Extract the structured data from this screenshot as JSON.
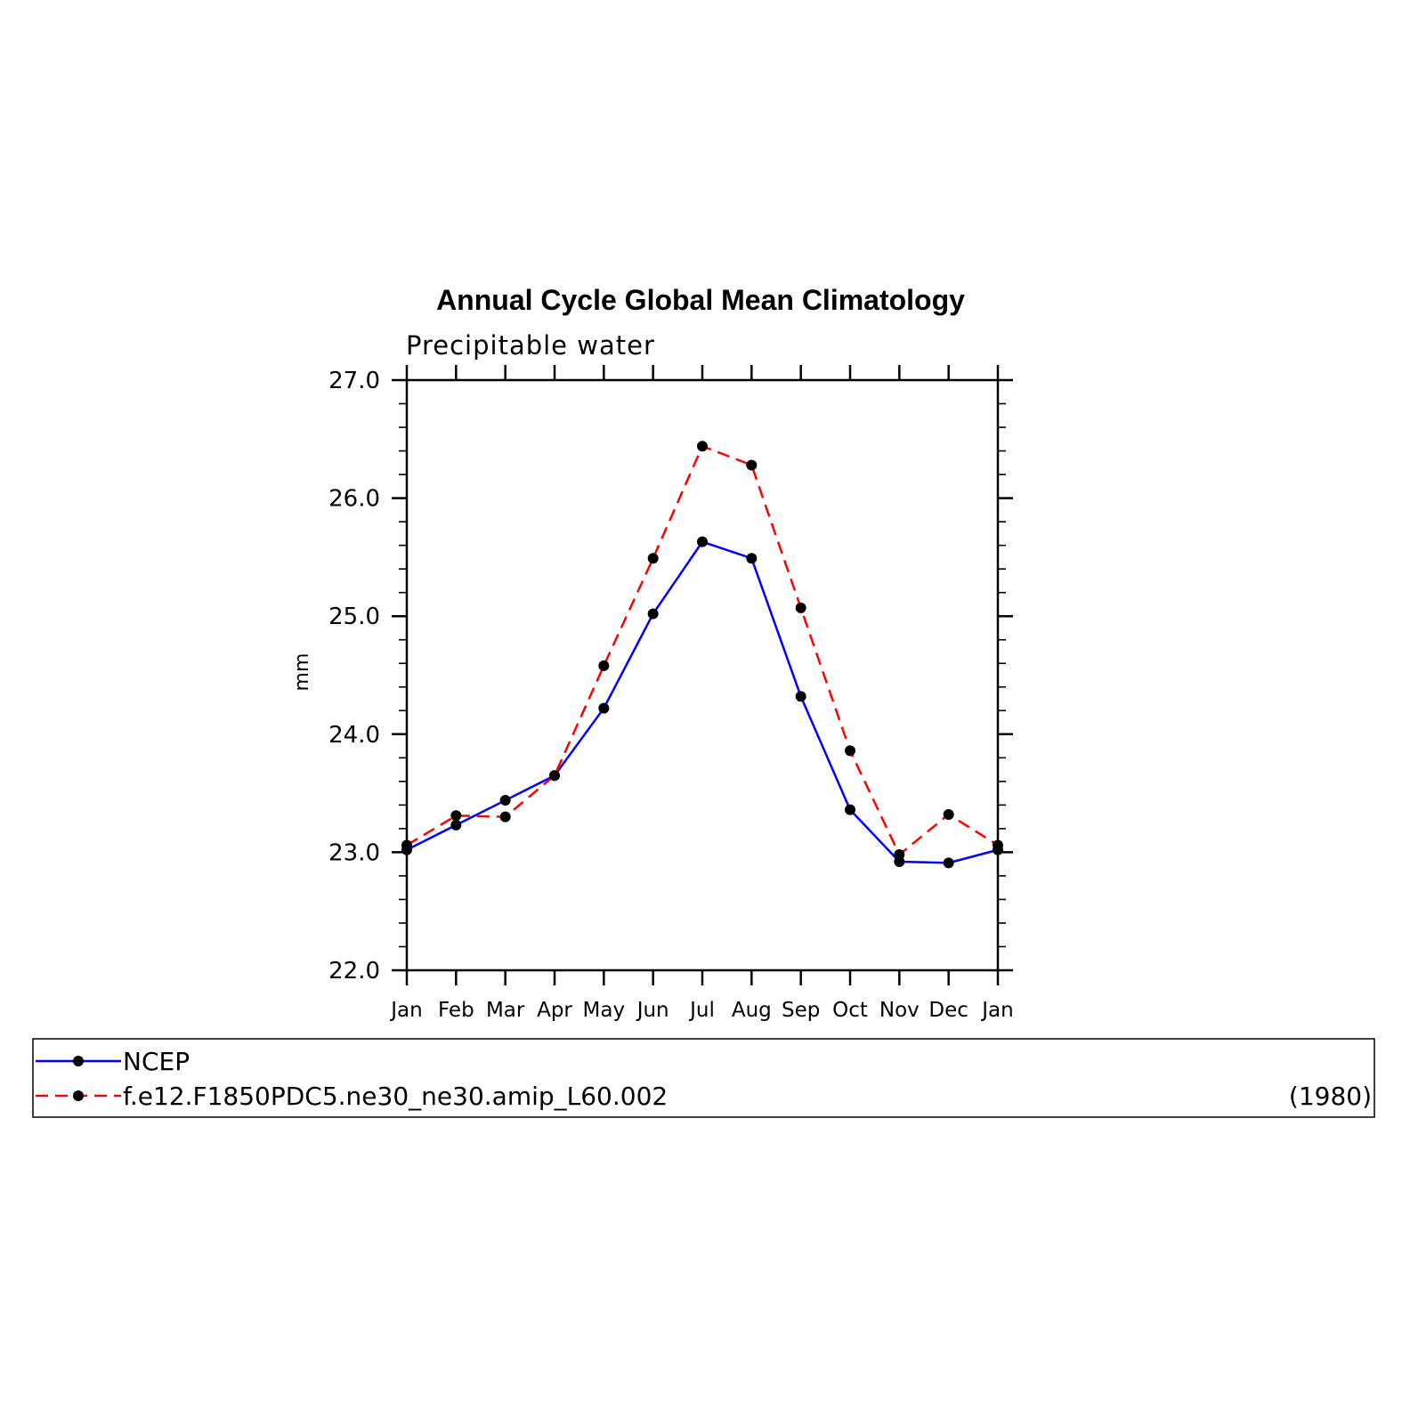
{
  "chart_data": {
    "type": "line",
    "title": "Annual Cycle Global Mean Climatology",
    "subtitle": "Precipitable water",
    "ylabel": "mm",
    "xlabel": "",
    "ylim": [
      22.0,
      27.0
    ],
    "yticks": [
      "22.0",
      "23.0",
      "24.0",
      "25.0",
      "26.0",
      "27.0"
    ],
    "yminor_step": 0.2,
    "categories": [
      "Jan",
      "Feb",
      "Mar",
      "Apr",
      "May",
      "Jun",
      "Jul",
      "Aug",
      "Sep",
      "Oct",
      "Nov",
      "Dec",
      "Jan"
    ],
    "grid": false,
    "legend_position": "bottom",
    "series": [
      {
        "name": "NCEP",
        "color": "#0000ff",
        "dash": "solid",
        "marker": "filled-circle",
        "values": [
          23.02,
          23.23,
          23.44,
          23.65,
          24.22,
          25.02,
          25.63,
          25.49,
          24.32,
          23.36,
          22.92,
          22.91,
          23.02
        ]
      },
      {
        "name": "f.e12.F1850PDC5.ne30_ne30.amip_L60.002",
        "color": "#ff0000",
        "dash": "dashed",
        "marker": "filled-circle",
        "values": [
          23.06,
          23.31,
          23.3,
          23.65,
          24.58,
          25.49,
          26.44,
          26.28,
          25.07,
          23.86,
          22.98,
          23.32,
          23.06
        ]
      }
    ],
    "annotation": "(1980)",
    "marker_color": "#000000"
  }
}
